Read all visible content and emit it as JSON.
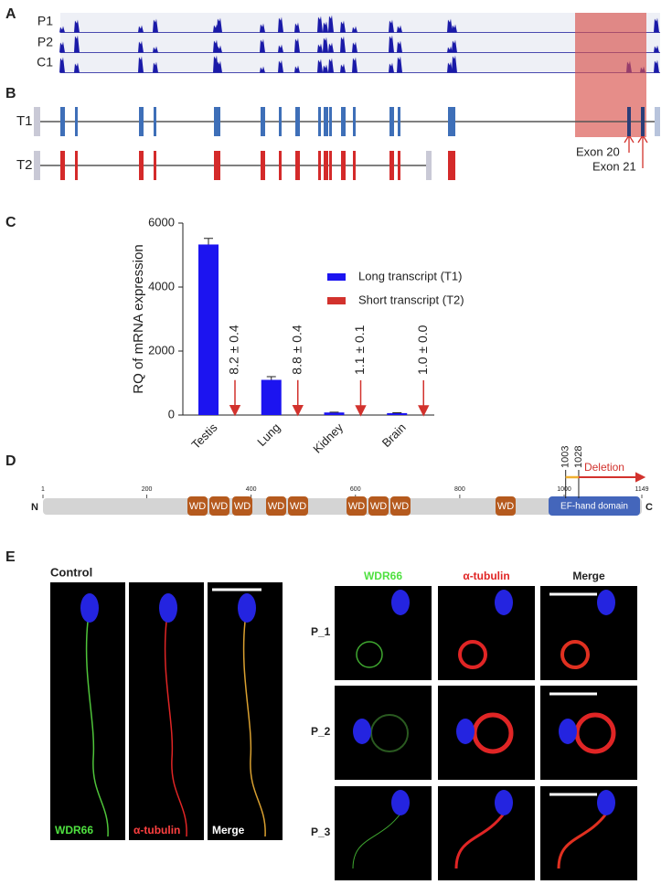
{
  "panel_labels": [
    "A",
    "B",
    "C",
    "D",
    "E"
  ],
  "panel_a": {
    "tracks": [
      "P1",
      "P2",
      "C1"
    ]
  },
  "panel_b": {
    "transcripts": [
      "T1",
      "T2"
    ],
    "exon_labels": [
      "Exon 20",
      "Exon 21"
    ]
  },
  "chart_data": {
    "type": "bar",
    "y_label": "RQ of mRNA expression",
    "categories": [
      "Testis",
      "Lung",
      "Kidney",
      "Brain"
    ],
    "series": [
      {
        "name": "Long transcript (T1)",
        "color": "#1c14f0",
        "values": [
          5330,
          1100,
          80,
          60
        ],
        "errors": [
          190,
          100,
          10,
          10
        ]
      },
      {
        "name": "Short transcript (T2)",
        "color": "#d2322d",
        "values": [
          8.2,
          8.8,
          1.1,
          1.0
        ],
        "value_labels": [
          "8.2 ± 0.4",
          "8.8 ± 0.4",
          "1.1 ± 0.1",
          "1.0 ± 0.0"
        ]
      }
    ],
    "ylim": [
      0,
      6000
    ],
    "yticks": [
      0,
      2000,
      4000,
      6000
    ]
  },
  "panel_d": {
    "ends": [
      "N",
      "C"
    ],
    "xlim": [
      1,
      1149
    ],
    "ticks": [
      1,
      200,
      400,
      600,
      800,
      1000,
      1149
    ],
    "domains": [
      "WD",
      "WD",
      "WD",
      "WD",
      "WD",
      "WD",
      "WD",
      "WD",
      "WD",
      "EF-hand domain"
    ],
    "deletion": {
      "start": 1003,
      "end": 1028,
      "label": "Deletion"
    }
  },
  "panel_e": {
    "control": {
      "title": "Control",
      "channels": [
        "WDR66",
        "α-tubulin",
        "Merge"
      ]
    },
    "patients": {
      "channels": [
        "WDR66",
        "α-tubulin",
        "Merge"
      ],
      "rows": [
        "P_1",
        "P_2",
        "P_3"
      ]
    }
  }
}
